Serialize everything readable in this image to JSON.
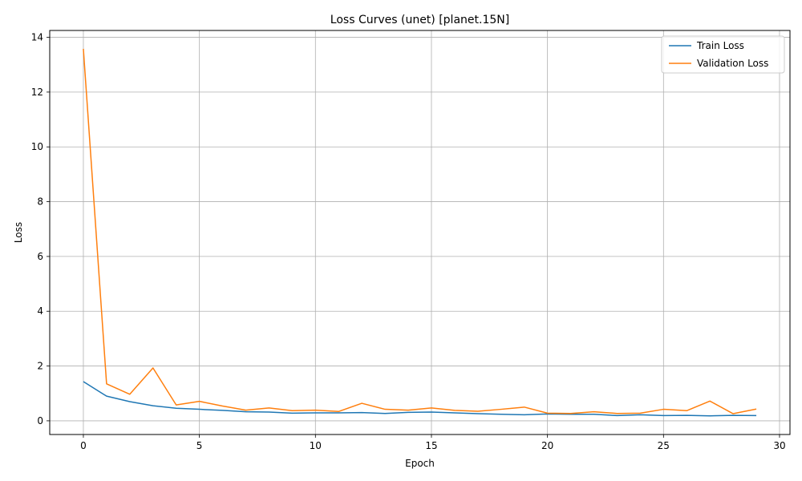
{
  "chart_data": {
    "type": "line",
    "title": "Loss Curves (unet) [planet.15N]",
    "xlabel": "Epoch",
    "ylabel": "Loss",
    "xlim": [
      -1.45,
      30.45
    ],
    "ylim": [
      -0.5,
      14.25
    ],
    "xticks": [
      0,
      5,
      10,
      15,
      20,
      25,
      30
    ],
    "yticks": [
      0,
      2,
      4,
      6,
      8,
      10,
      12,
      14
    ],
    "grid": true,
    "legend_position": "top-right",
    "x": [
      0,
      1,
      2,
      3,
      4,
      5,
      6,
      7,
      8,
      9,
      10,
      11,
      12,
      13,
      14,
      15,
      16,
      17,
      18,
      19,
      20,
      21,
      22,
      23,
      24,
      25,
      26,
      27,
      28,
      29
    ],
    "series": [
      {
        "name": "Train Loss",
        "color": "#1f77b4",
        "values": [
          1.43,
          0.9,
          0.7,
          0.55,
          0.46,
          0.42,
          0.38,
          0.33,
          0.32,
          0.28,
          0.29,
          0.29,
          0.3,
          0.27,
          0.31,
          0.32,
          0.29,
          0.26,
          0.24,
          0.22,
          0.25,
          0.24,
          0.24,
          0.19,
          0.22,
          0.19,
          0.2,
          0.18,
          0.2,
          0.19
        ]
      },
      {
        "name": "Validation Loss",
        "color": "#ff7f0e",
        "values": [
          13.58,
          1.35,
          0.97,
          1.93,
          0.58,
          0.71,
          0.54,
          0.39,
          0.47,
          0.37,
          0.39,
          0.34,
          0.64,
          0.42,
          0.39,
          0.47,
          0.38,
          0.35,
          0.42,
          0.5,
          0.28,
          0.27,
          0.33,
          0.27,
          0.28,
          0.42,
          0.37,
          0.72,
          0.26,
          0.43
        ]
      }
    ]
  }
}
